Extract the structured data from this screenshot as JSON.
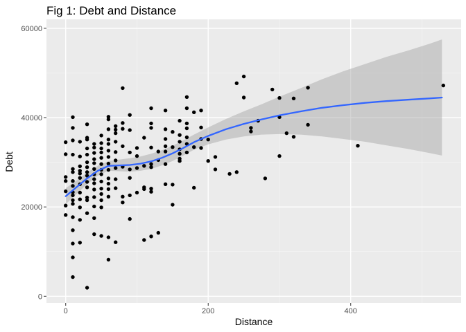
{
  "chart_data": {
    "type": "scatter",
    "title": "Fig 1: Debt and Distance",
    "xlabel": "Distance",
    "ylabel": "Debt",
    "xlim": [
      -27,
      555
    ],
    "ylim": [
      -1500,
      62000
    ],
    "x_ticks": [
      0,
      200,
      400
    ],
    "y_ticks": [
      0,
      20000,
      40000,
      60000
    ],
    "x_tick_labels": [
      "0",
      "200",
      "400"
    ],
    "y_tick_labels": [
      "0",
      "20000",
      "40000",
      "60000"
    ],
    "grid": true,
    "legend": "none",
    "colors": {
      "panel": "#ebebeb",
      "grid_major": "#ffffff",
      "points": "#000000",
      "smooth_line": "#3366ff",
      "ribbon": "#999999"
    },
    "points": [
      [
        0,
        34500
      ],
      [
        0,
        31800
      ],
      [
        0,
        26700
      ],
      [
        0,
        25800
      ],
      [
        0,
        23500
      ],
      [
        0,
        20300
      ],
      [
        0,
        18200
      ],
      [
        10,
        40100
      ],
      [
        10,
        37700
      ],
      [
        10,
        34900
      ],
      [
        10,
        31700
      ],
      [
        10,
        28500
      ],
      [
        10,
        27800
      ],
      [
        10,
        25800
      ],
      [
        10,
        24700
      ],
      [
        10,
        23300
      ],
      [
        10,
        22600
      ],
      [
        10,
        21500
      ],
      [
        10,
        20700
      ],
      [
        10,
        17700
      ],
      [
        10,
        14800
      ],
      [
        10,
        11800
      ],
      [
        10,
        8700
      ],
      [
        10,
        4300
      ],
      [
        20,
        34600
      ],
      [
        20,
        31300
      ],
      [
        20,
        29100
      ],
      [
        20,
        28100
      ],
      [
        20,
        27500
      ],
      [
        20,
        26500
      ],
      [
        20,
        25100
      ],
      [
        20,
        23200
      ],
      [
        20,
        21700
      ],
      [
        20,
        19900
      ],
      [
        20,
        17100
      ],
      [
        20,
        12000
      ],
      [
        30,
        38500
      ],
      [
        30,
        35500
      ],
      [
        30,
        35100
      ],
      [
        30,
        33100
      ],
      [
        30,
        31700
      ],
      [
        30,
        30000
      ],
      [
        30,
        28900
      ],
      [
        30,
        27800
      ],
      [
        30,
        27000
      ],
      [
        30,
        25600
      ],
      [
        30,
        24400
      ],
      [
        30,
        22100
      ],
      [
        30,
        21500
      ],
      [
        30,
        18600
      ],
      [
        30,
        1900
      ],
      [
        40,
        34100
      ],
      [
        40,
        33300
      ],
      [
        40,
        32100
      ],
      [
        40,
        30700
      ],
      [
        40,
        29800
      ],
      [
        40,
        28500
      ],
      [
        40,
        27300
      ],
      [
        40,
        26200
      ],
      [
        40,
        25300
      ],
      [
        40,
        23900
      ],
      [
        40,
        22200
      ],
      [
        40,
        20100
      ],
      [
        40,
        17500
      ],
      [
        40,
        13900
      ],
      [
        50,
        36000
      ],
      [
        50,
        34300
      ],
      [
        50,
        33100
      ],
      [
        50,
        32200
      ],
      [
        50,
        31000
      ],
      [
        50,
        29600
      ],
      [
        50,
        28300
      ],
      [
        50,
        27300
      ],
      [
        50,
        25700
      ],
      [
        50,
        24100
      ],
      [
        50,
        22900
      ],
      [
        50,
        21500
      ],
      [
        50,
        19900
      ],
      [
        50,
        13500
      ],
      [
        60,
        40200
      ],
      [
        60,
        39600
      ],
      [
        60,
        37400
      ],
      [
        60,
        35100
      ],
      [
        60,
        34100
      ],
      [
        60,
        32600
      ],
      [
        60,
        31200
      ],
      [
        60,
        29700
      ],
      [
        60,
        28300
      ],
      [
        60,
        26400
      ],
      [
        60,
        25200
      ],
      [
        60,
        24000
      ],
      [
        60,
        22300
      ],
      [
        60,
        13200
      ],
      [
        60,
        8200
      ],
      [
        70,
        38100
      ],
      [
        70,
        37300
      ],
      [
        70,
        36500
      ],
      [
        70,
        34600
      ],
      [
        70,
        32300
      ],
      [
        70,
        30400
      ],
      [
        70,
        28700
      ],
      [
        70,
        26200
      ],
      [
        70,
        24200
      ],
      [
        70,
        12100
      ],
      [
        80,
        46600
      ],
      [
        80,
        38800
      ],
      [
        80,
        37500
      ],
      [
        80,
        33600
      ],
      [
        80,
        29000
      ],
      [
        80,
        22300
      ],
      [
        80,
        21000
      ],
      [
        90,
        40600
      ],
      [
        90,
        37200
      ],
      [
        90,
        32200
      ],
      [
        90,
        28400
      ],
      [
        90,
        26500
      ],
      [
        90,
        22600
      ],
      [
        90,
        17300
      ],
      [
        100,
        33200
      ],
      [
        100,
        31400
      ],
      [
        100,
        28700
      ],
      [
        100,
        23200
      ],
      [
        110,
        35500
      ],
      [
        110,
        29200
      ],
      [
        110,
        24400
      ],
      [
        110,
        24000
      ],
      [
        110,
        12600
      ],
      [
        120,
        42100
      ],
      [
        120,
        38700
      ],
      [
        120,
        37700
      ],
      [
        120,
        33300
      ],
      [
        120,
        29600
      ],
      [
        120,
        28900
      ],
      [
        120,
        24100
      ],
      [
        120,
        23400
      ],
      [
        120,
        13400
      ],
      [
        130,
        32400
      ],
      [
        130,
        30500
      ],
      [
        130,
        14200
      ],
      [
        140,
        41600
      ],
      [
        140,
        37400
      ],
      [
        140,
        35200
      ],
      [
        140,
        33600
      ],
      [
        140,
        32400
      ],
      [
        140,
        29600
      ],
      [
        140,
        25100
      ],
      [
        150,
        36800
      ],
      [
        150,
        33400
      ],
      [
        150,
        25000
      ],
      [
        150,
        20500
      ],
      [
        160,
        39300
      ],
      [
        160,
        36100
      ],
      [
        160,
        34600
      ],
      [
        160,
        32900
      ],
      [
        160,
        31900
      ],
      [
        160,
        30800
      ],
      [
        160,
        30300
      ],
      [
        170,
        44600
      ],
      [
        170,
        42100
      ],
      [
        170,
        38700
      ],
      [
        170,
        37600
      ],
      [
        170,
        35600
      ],
      [
        170,
        34100
      ],
      [
        170,
        32200
      ],
      [
        180,
        41200
      ],
      [
        180,
        33400
      ],
      [
        180,
        24300
      ],
      [
        190,
        41600
      ],
      [
        190,
        37800
      ],
      [
        190,
        35200
      ],
      [
        190,
        33200
      ],
      [
        200,
        35100
      ],
      [
        200,
        30300
      ],
      [
        210,
        31200
      ],
      [
        210,
        28400
      ],
      [
        230,
        27400
      ],
      [
        240,
        47700
      ],
      [
        240,
        27800
      ],
      [
        250,
        49200
      ],
      [
        250,
        44500
      ],
      [
        260,
        37700
      ],
      [
        260,
        36900
      ],
      [
        270,
        39300
      ],
      [
        280,
        26400
      ],
      [
        290,
        46300
      ],
      [
        300,
        44400
      ],
      [
        300,
        40100
      ],
      [
        300,
        31400
      ],
      [
        310,
        36500
      ],
      [
        320,
        44300
      ],
      [
        320,
        35700
      ],
      [
        340,
        46700
      ],
      [
        340,
        38400
      ],
      [
        410,
        33700
      ],
      [
        530,
        47200
      ]
    ],
    "smooth_line": [
      [
        0,
        22400
      ],
      [
        15,
        24400
      ],
      [
        30,
        26400
      ],
      [
        45,
        28100
      ],
      [
        60,
        29200
      ],
      [
        75,
        29300
      ],
      [
        90,
        29400
      ],
      [
        105,
        29700
      ],
      [
        120,
        30200
      ],
      [
        135,
        31000
      ],
      [
        150,
        32000
      ],
      [
        165,
        33200
      ],
      [
        180,
        34500
      ],
      [
        200,
        35900
      ],
      [
        225,
        37400
      ],
      [
        250,
        38600
      ],
      [
        275,
        39600
      ],
      [
        300,
        40500
      ],
      [
        330,
        41400
      ],
      [
        360,
        42200
      ],
      [
        390,
        42800
      ],
      [
        420,
        43300
      ],
      [
        450,
        43700
      ],
      [
        480,
        44000
      ],
      [
        510,
        44300
      ],
      [
        528,
        44500
      ]
    ],
    "ribbon_upper": [
      [
        0,
        24200
      ],
      [
        15,
        25900
      ],
      [
        30,
        27700
      ],
      [
        45,
        29200
      ],
      [
        60,
        30300
      ],
      [
        75,
        30600
      ],
      [
        90,
        30900
      ],
      [
        105,
        31300
      ],
      [
        120,
        31900
      ],
      [
        135,
        32700
      ],
      [
        150,
        33700
      ],
      [
        165,
        34900
      ],
      [
        180,
        36200
      ],
      [
        200,
        37800
      ],
      [
        225,
        39700
      ],
      [
        250,
        41400
      ],
      [
        275,
        43000
      ],
      [
        300,
        44700
      ],
      [
        330,
        46600
      ],
      [
        360,
        48600
      ],
      [
        390,
        50400
      ],
      [
        420,
        52000
      ],
      [
        450,
        53600
      ],
      [
        480,
        55000
      ],
      [
        510,
        56500
      ],
      [
        528,
        57500
      ]
    ],
    "ribbon_lower": [
      [
        0,
        20600
      ],
      [
        15,
        22900
      ],
      [
        30,
        25100
      ],
      [
        45,
        27000
      ],
      [
        60,
        28100
      ],
      [
        75,
        28000
      ],
      [
        90,
        27900
      ],
      [
        105,
        28100
      ],
      [
        120,
        28500
      ],
      [
        135,
        29300
      ],
      [
        150,
        30300
      ],
      [
        165,
        31500
      ],
      [
        180,
        32800
      ],
      [
        200,
        34000
      ],
      [
        225,
        35100
      ],
      [
        250,
        35800
      ],
      [
        275,
        36200
      ],
      [
        300,
        36300
      ],
      [
        330,
        36200
      ],
      [
        360,
        35800
      ],
      [
        390,
        35200
      ],
      [
        420,
        34600
      ],
      [
        450,
        33800
      ],
      [
        480,
        33000
      ],
      [
        510,
        32100
      ],
      [
        528,
        31500
      ]
    ]
  }
}
